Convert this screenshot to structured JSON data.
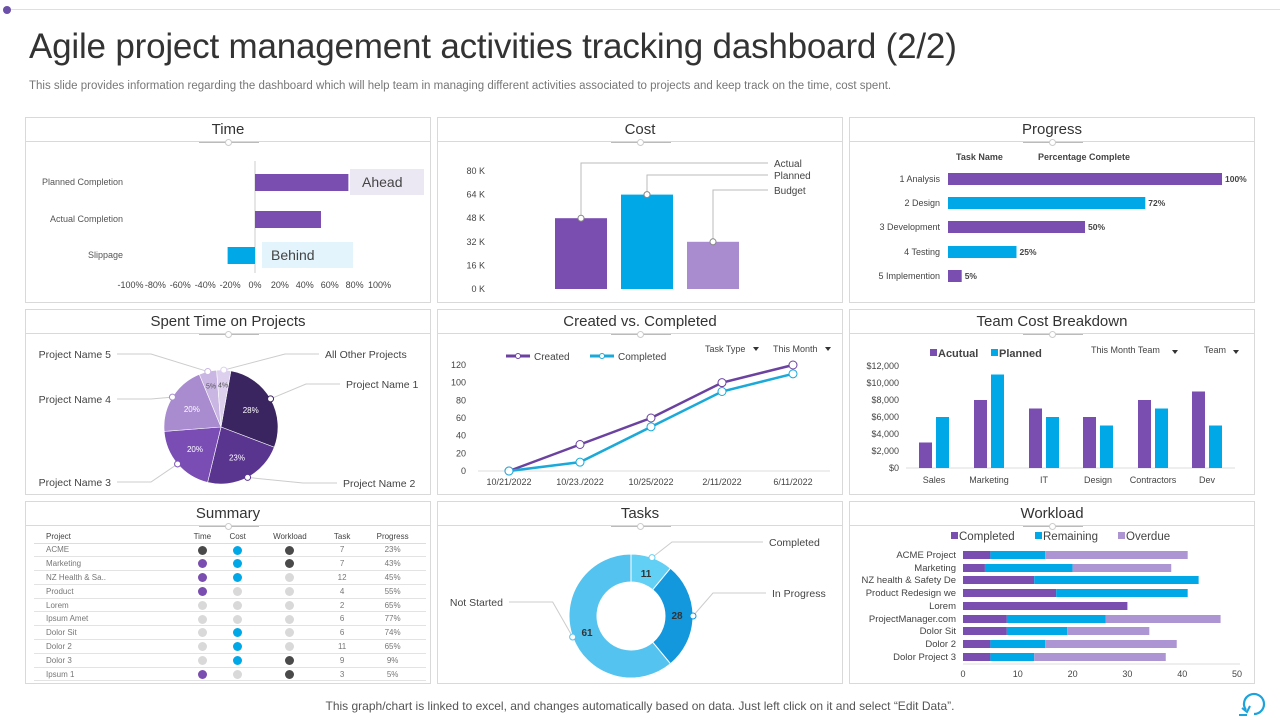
{
  "header": {
    "title": "Agile project management activities tracking dashboard (2/2)",
    "subtitle": "This slide provides information regarding the dashboard which will help team in managing different activities associated to projects and keep track on the time, cost spent."
  },
  "panels": {
    "time": "Time",
    "cost": "Cost",
    "progress": "Progress",
    "spent": "Spent Time on Projects",
    "created": "Created vs. Completed",
    "team": "Team Cost Breakdown",
    "summary": "Summary",
    "tasks": "Tasks",
    "workload": "Workload"
  },
  "footer": {
    "note": "This graph/chart is linked to excel,  and changes automatically based on data. Just left click on it and select “Edit Data”."
  },
  "colors": {
    "purple": "#7a4db0",
    "blue": "#00a8e8",
    "dark": "#4a4a4a",
    "gray": "#d9d9d9",
    "light_purple": "#a98bd0"
  },
  "summary": {
    "columns": [
      "Project",
      "Time",
      "Cost",
      "Workload",
      "Task",
      "Progress"
    ],
    "rows": [
      {
        "project": "ACME",
        "time": "dark",
        "cost": "blue",
        "workload": "dark",
        "task": "7",
        "progress": "23%"
      },
      {
        "project": "Marketing",
        "time": "purple",
        "cost": "blue",
        "workload": "dark",
        "task": "7",
        "progress": "43%"
      },
      {
        "project": "NZ Health & Sa..",
        "time": "purple",
        "cost": "blue",
        "workload": "gray",
        "task": "12",
        "progress": "45%"
      },
      {
        "project": "Product",
        "time": "purple",
        "cost": "gray",
        "workload": "gray",
        "task": "4",
        "progress": "55%"
      },
      {
        "project": "Lorem",
        "time": "gray",
        "cost": "gray",
        "workload": "gray",
        "task": "2",
        "progress": "65%"
      },
      {
        "project": "Ipsum Amet",
        "time": "gray",
        "cost": "gray",
        "workload": "gray",
        "task": "6",
        "progress": "77%"
      },
      {
        "project": "Dolor Sit",
        "time": "gray",
        "cost": "blue",
        "workload": "gray",
        "task": "6",
        "progress": "74%"
      },
      {
        "project": "Dolor 2",
        "time": "gray",
        "cost": "blue",
        "workload": "gray",
        "task": "11",
        "progress": "65%"
      },
      {
        "project": "Dolor 3",
        "time": "gray",
        "cost": "blue",
        "workload": "dark",
        "task": "9",
        "progress": "9%"
      },
      {
        "project": "Ipsum 1",
        "time": "purple",
        "cost": "gray",
        "workload": "dark",
        "task": "3",
        "progress": "5%"
      }
    ]
  },
  "chart_data": [
    {
      "type": "bar",
      "title": "Time",
      "orientation": "horizontal",
      "categories": [
        "Planned Completion",
        "Actual Completion",
        "Slippage"
      ],
      "values": [
        75,
        53,
        -22
      ],
      "unit": "%",
      "xlim": [
        -100,
        100
      ],
      "xticks": [
        "-100%",
        "-80%",
        "-60%",
        "-40%",
        "-20%",
        "0%",
        "20%",
        "40%",
        "60%",
        "80%",
        "100%"
      ],
      "annotations": [
        "Ahead",
        "Behind"
      ]
    },
    {
      "type": "bar",
      "title": "Cost",
      "categories": [
        "Actual",
        "Planned",
        "Budget"
      ],
      "values": [
        48,
        64,
        32
      ],
      "unit": "K",
      "ylim": [
        0,
        80
      ],
      "yticks": [
        "0 K",
        "16 K",
        "32 K",
        "48 K",
        "64 K",
        "80 K"
      ]
    },
    {
      "type": "bar",
      "title": "Progress",
      "orientation": "horizontal",
      "headers": [
        "Task Name",
        "Percentage Complete"
      ],
      "categories": [
        "1 Analysis",
        "2 Design",
        "3 Development",
        "4 Testing",
        "5 Implemention"
      ],
      "values": [
        100,
        72,
        50,
        25,
        5
      ],
      "labels": [
        "100%",
        "72%",
        "50%",
        "25%",
        "5%"
      ]
    },
    {
      "type": "pie",
      "title": "Spent Time on Projects",
      "categories": [
        "Project Name  1",
        "Project Name  2",
        "Project Name  3",
        "Project Name  4",
        "Project Name  5",
        "All Other Projects"
      ],
      "values": [
        28,
        23,
        20,
        20,
        5,
        4
      ],
      "labels": [
        "28%",
        "23%",
        "20%",
        "20%",
        "5%",
        "4%"
      ]
    },
    {
      "type": "line",
      "title": "Created vs. Completed",
      "x": [
        "10/21/2022",
        "10/23./2022",
        "10/25/2022",
        "2/11/2022",
        "6/11/2022"
      ],
      "series": [
        {
          "name": "Created",
          "values": [
            0,
            30,
            60,
            100,
            120
          ]
        },
        {
          "name": "Completed",
          "values": [
            0,
            10,
            50,
            90,
            110
          ]
        }
      ],
      "ylim": [
        0,
        120
      ],
      "yticks": [
        "0",
        "20",
        "40",
        "60",
        "80",
        "100",
        "120"
      ],
      "filters": [
        "Task Type",
        "This Month"
      ]
    },
    {
      "type": "bar",
      "title": "Team Cost Breakdown",
      "categories": [
        "Sales",
        "Marketing",
        "IT",
        "Design",
        "Contractors",
        "Dev"
      ],
      "series": [
        {
          "name": "Acutual",
          "values": [
            3000,
            8000,
            7000,
            6000,
            8000,
            9000
          ]
        },
        {
          "name": "Planned",
          "values": [
            6000,
            11000,
            6000,
            5000,
            7000,
            5000
          ]
        }
      ],
      "ylim": [
        0,
        12000
      ],
      "yticks": [
        "$0",
        "$2,000",
        "$4,000",
        "$6,000",
        "$8,000",
        "$10,000",
        "$12,000"
      ],
      "filters": [
        "This Month Team",
        "Team"
      ]
    },
    {
      "type": "pie",
      "title": "Tasks",
      "donut": true,
      "categories": [
        "Completed",
        "In Progress",
        "Not Started"
      ],
      "values": [
        11,
        28,
        61
      ],
      "labels": [
        "11",
        "28",
        "61"
      ]
    },
    {
      "type": "bar",
      "title": "Workload",
      "orientation": "horizontal",
      "stacked": true,
      "categories": [
        "ACME Project",
        "Marketing",
        "NZ health & Safety De",
        "Product Redesign we",
        "Lorem",
        "ProjectManager.com",
        "Dolor Sit",
        "Dolor 2",
        "Dolor Project 3"
      ],
      "series": [
        {
          "name": "Completed",
          "values": [
            5,
            4,
            13,
            17,
            30,
            8,
            8,
            5,
            5
          ]
        },
        {
          "name": "Remaining",
          "values": [
            10,
            16,
            30,
            24,
            0,
            18,
            11,
            10,
            8
          ]
        },
        {
          "name": "Overdue",
          "values": [
            26,
            18,
            0,
            0,
            0,
            21,
            15,
            24,
            24
          ]
        }
      ],
      "xlim": [
        0,
        50
      ],
      "xticks": [
        "0",
        "10",
        "20",
        "30",
        "40",
        "50"
      ]
    }
  ]
}
